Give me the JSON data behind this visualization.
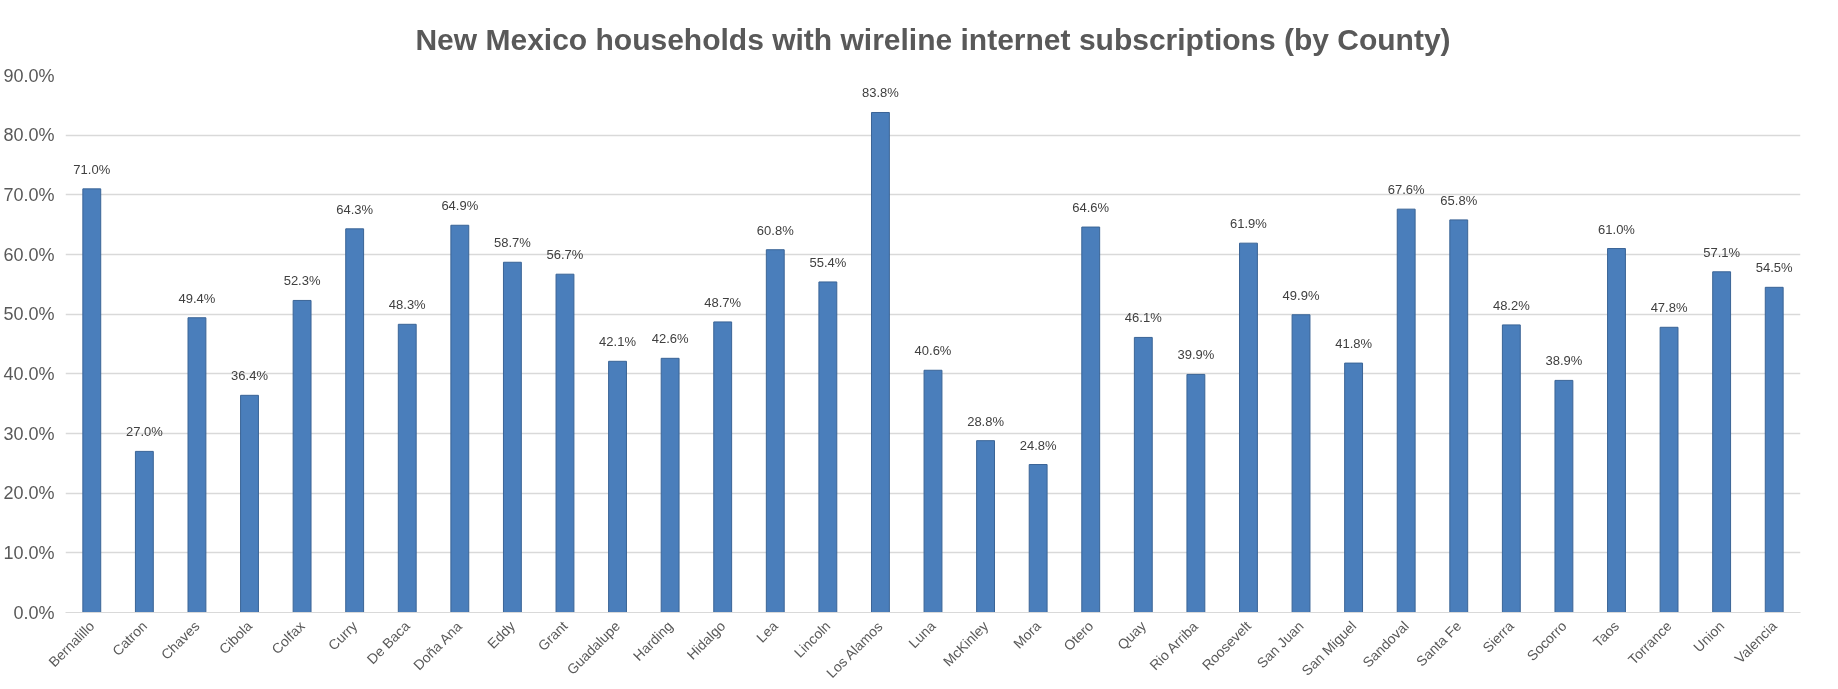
{
  "chart_data": {
    "type": "bar",
    "title": "New Mexico households with wireline internet subscriptions (by County)",
    "categories": [
      "Bernalillo",
      "Catron",
      "Chaves",
      "Cibola",
      "Colfax",
      "Curry",
      "De Baca",
      "Doña Ana",
      "Eddy",
      "Grant",
      "Guadalupe",
      "Harding",
      "Hidalgo",
      "Lea",
      "Lincoln",
      "Los Alamos",
      "Luna",
      "McKinley",
      "Mora",
      "Otero",
      "Quay",
      "Rio Arriba",
      "Roosevelt",
      "San Juan",
      "San Miguel",
      "Sandoval",
      "Santa Fe",
      "Sierra",
      "Socorro",
      "Taos",
      "Torrance",
      "Union",
      "Valencia"
    ],
    "values": [
      71.0,
      27.0,
      49.4,
      36.4,
      52.3,
      64.3,
      48.3,
      64.9,
      58.7,
      56.7,
      42.1,
      42.6,
      48.7,
      60.8,
      55.4,
      83.8,
      40.6,
      28.8,
      24.8,
      64.6,
      46.1,
      39.9,
      61.9,
      49.9,
      41.8,
      67.6,
      65.8,
      48.2,
      38.9,
      61.0,
      47.8,
      57.1,
      54.5
    ],
    "value_labels": [
      "71.0%",
      "27.0%",
      "49.4%",
      "36.4%",
      "52.3%",
      "64.3%",
      "48.3%",
      "64.9%",
      "58.7%",
      "56.7%",
      "42.1%",
      "42.6%",
      "48.7%",
      "60.8%",
      "55.4%",
      "83.8%",
      "40.6%",
      "28.8%",
      "24.8%",
      "64.6%",
      "46.1%",
      "39.9%",
      "61.9%",
      "49.9%",
      "41.8%",
      "67.6%",
      "65.8%",
      "48.2%",
      "38.9%",
      "61.0%",
      "47.8%",
      "57.1%",
      "54.5%"
    ],
    "color": "#4a7ebb",
    "ylim": [
      0,
      90
    ],
    "yticks": [
      {
        "value": 0,
        "label": "0.0%"
      },
      {
        "value": 10,
        "label": "10.0%"
      },
      {
        "value": 20,
        "label": "20.0%"
      },
      {
        "value": 30,
        "label": "30.0%"
      },
      {
        "value": 40,
        "label": "40.0%"
      },
      {
        "value": 50,
        "label": "50.0%"
      },
      {
        "value": 60,
        "label": "60.0%"
      },
      {
        "value": 70,
        "label": "70.0%"
      },
      {
        "value": 80,
        "label": "80.0%"
      },
      {
        "value": 90,
        "label": "90.0%"
      }
    ],
    "grid": "y"
  }
}
